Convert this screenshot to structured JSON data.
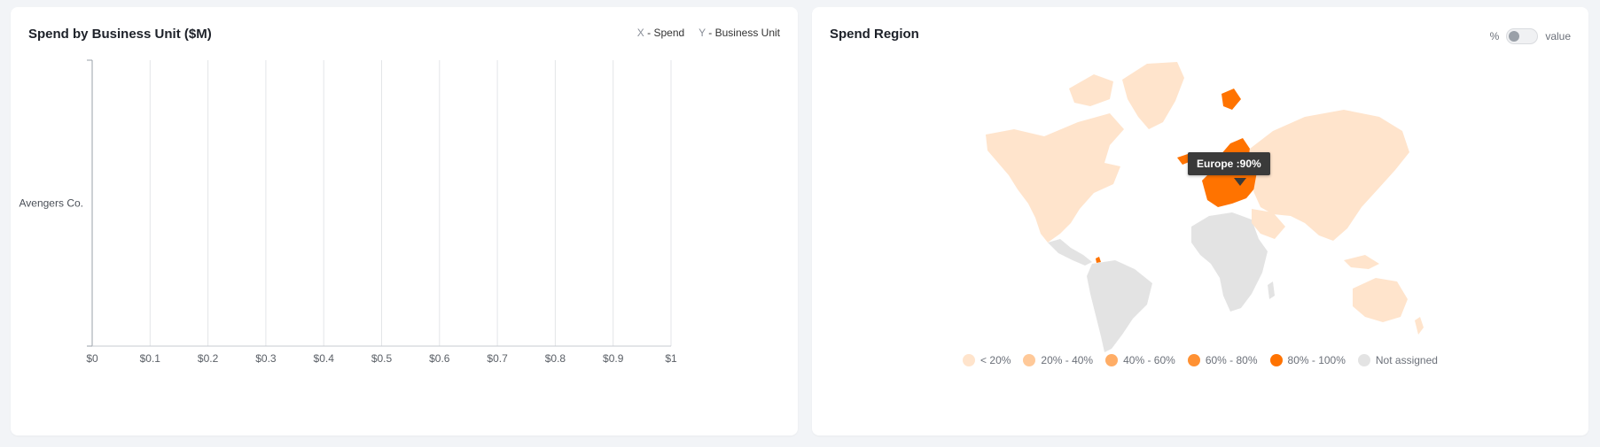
{
  "left_card": {
    "title": "Spend by Business Unit ($M)",
    "x_key": "X",
    "x_name": " - Spend",
    "y_key": "Y",
    "y_name": " - Business Unit"
  },
  "right_card": {
    "title": "Spend Region",
    "toggle_left": "%",
    "toggle_right": "value",
    "tooltip": "Europe :90%",
    "legend": [
      {
        "label": "< 20%",
        "color": "#ffe4cc"
      },
      {
        "label": "20% - 40%",
        "color": "#ffc999"
      },
      {
        "label": "40% - 60%",
        "color": "#ffad66"
      },
      {
        "label": "60% - 80%",
        "color": "#ff9133"
      },
      {
        "label": "80% - 100%",
        "color": "#ff7300"
      },
      {
        "label": "Not assigned",
        "color": "#e3e3e3"
      }
    ]
  },
  "chart_data": {
    "type": "bar",
    "orientation": "horizontal",
    "title": "Spend by Business Unit ($M)",
    "categories": [
      "Avengers Co."
    ],
    "values": [
      0
    ],
    "xlim": [
      0,
      1
    ],
    "x_ticks": [
      "$0",
      "$0.1",
      "$0.2",
      "$0.3",
      "$0.4",
      "$0.5",
      "$0.6",
      "$0.7",
      "$0.8",
      "$0.9",
      "$1"
    ],
    "grid": true
  }
}
